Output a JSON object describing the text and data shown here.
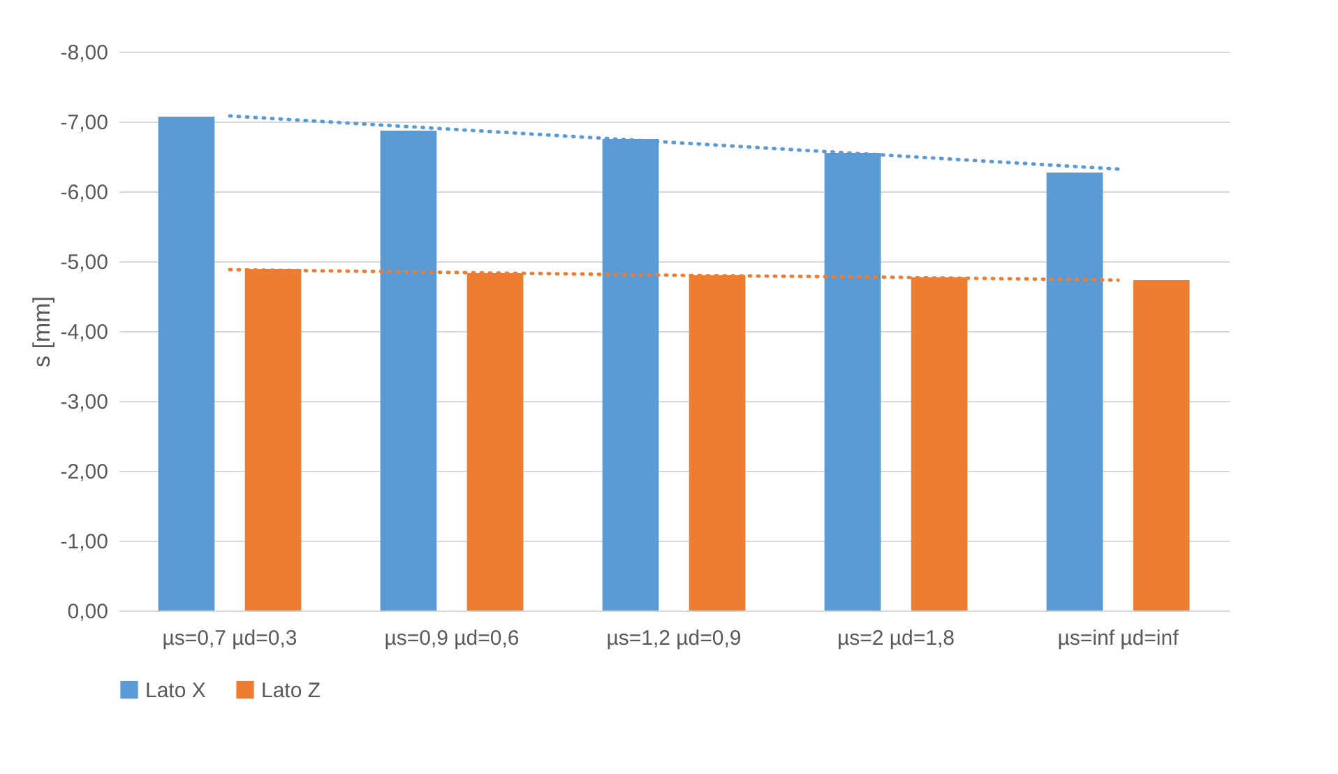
{
  "chart_data": {
    "type": "bar",
    "ylabel": "s [mm]",
    "categories": [
      "µs=0,7 µd=0,3",
      "µs=0,9 µd=0,6",
      "µs=1,2 µd=0,9",
      "µs=2 µd=1,8",
      "µs=inf  µd=inf"
    ],
    "series": [
      {
        "name": "Lato X",
        "color": "#5b9bd5",
        "values": [
          -7.07,
          -6.87,
          -6.75,
          -6.55,
          -6.27
        ]
      },
      {
        "name": "Lato Z",
        "color": "#ed7d31",
        "values": [
          -4.89,
          -4.83,
          -4.8,
          -4.77,
          -4.73
        ]
      },
      {
        "type": "line",
        "color": "#5b9bd5",
        "line_style": "dotted",
        "values": [
          -7.08,
          -6.89,
          -6.7,
          -6.51,
          -6.32
        ]
      },
      {
        "type": "line",
        "color": "#ed7d31",
        "line_style": "dotted",
        "values": [
          -4.88,
          -4.84,
          -4.8,
          -4.77,
          -4.73
        ]
      }
    ],
    "ylim": [
      0,
      -8
    ],
    "yticks": [
      {
        "value": 0,
        "label": "0,00"
      },
      {
        "value": -1,
        "label": "-1,00"
      },
      {
        "value": -2,
        "label": "-2,00"
      },
      {
        "value": -3,
        "label": "-3,00"
      },
      {
        "value": -4,
        "label": "-4,00"
      },
      {
        "value": -5,
        "label": "-5,00"
      },
      {
        "value": -6,
        "label": "-6,00"
      },
      {
        "value": -7,
        "label": "-7,00"
      },
      {
        "value": -8,
        "label": "-8,00"
      }
    ],
    "grid": "y",
    "legend": "bottom",
    "marker": "none"
  }
}
